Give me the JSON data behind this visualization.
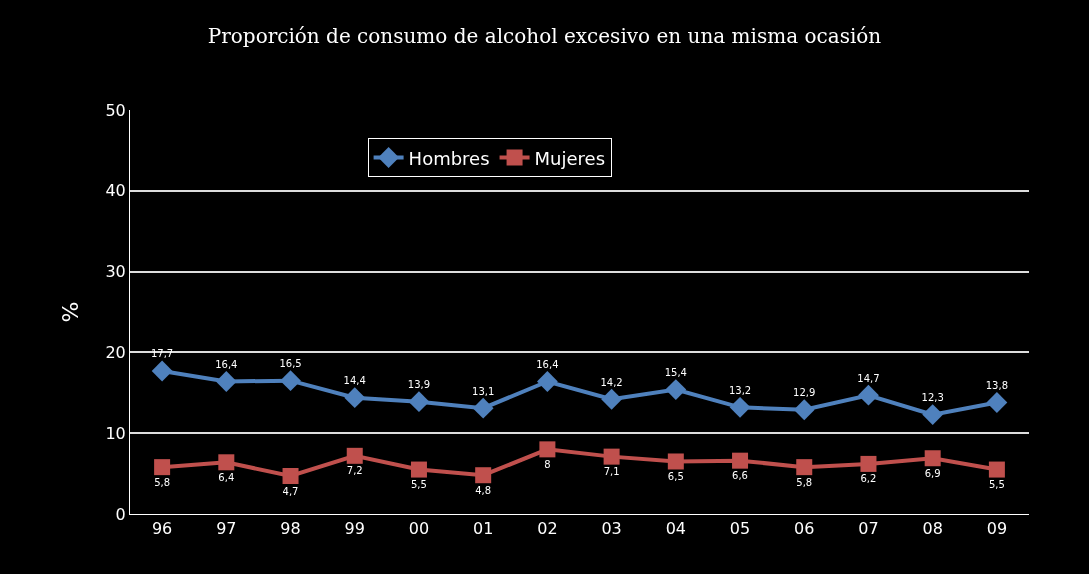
{
  "chart_data": {
    "type": "line",
    "title": "Proporción de consumo de alcohol excesivo en una misma ocasión",
    "ylabel": "%",
    "categories": [
      "96",
      "97",
      "98",
      "99",
      "00",
      "01",
      "02",
      "03",
      "04",
      "05",
      "06",
      "07",
      "08",
      "09"
    ],
    "series": [
      {
        "name": "Hombres",
        "color": "#4f81bd",
        "marker": "diamond",
        "values": [
          17.7,
          16.4,
          16.5,
          14.4,
          13.9,
          13.1,
          16.4,
          14.2,
          15.4,
          13.2,
          12.9,
          14.7,
          12.3,
          13.8
        ],
        "value_labels": [
          "17,7",
          "16,4",
          "16,5",
          "14,4",
          "13,9",
          "13,1",
          "16,4",
          "14,2",
          "15,4",
          "13,2",
          "12,9",
          "14,7",
          "12,3",
          "13,8"
        ]
      },
      {
        "name": "Mujeres",
        "color": "#c0504d",
        "marker": "square",
        "values": [
          5.8,
          6.4,
          4.7,
          7.2,
          5.5,
          4.8,
          8,
          7.1,
          6.5,
          6.6,
          5.8,
          6.2,
          6.9,
          5.5
        ],
        "value_labels": [
          "5,8",
          "6,4",
          "4,7",
          "7,2",
          "5,5",
          "4,8",
          "8",
          "7,1",
          "6,5",
          "6,6",
          "5,8",
          "6,2",
          "6,9",
          "5,5"
        ]
      }
    ],
    "ylim": [
      0,
      50
    ],
    "yticks": [
      0,
      10,
      20,
      30,
      40,
      50
    ],
    "grid": "y",
    "legend": "top"
  }
}
